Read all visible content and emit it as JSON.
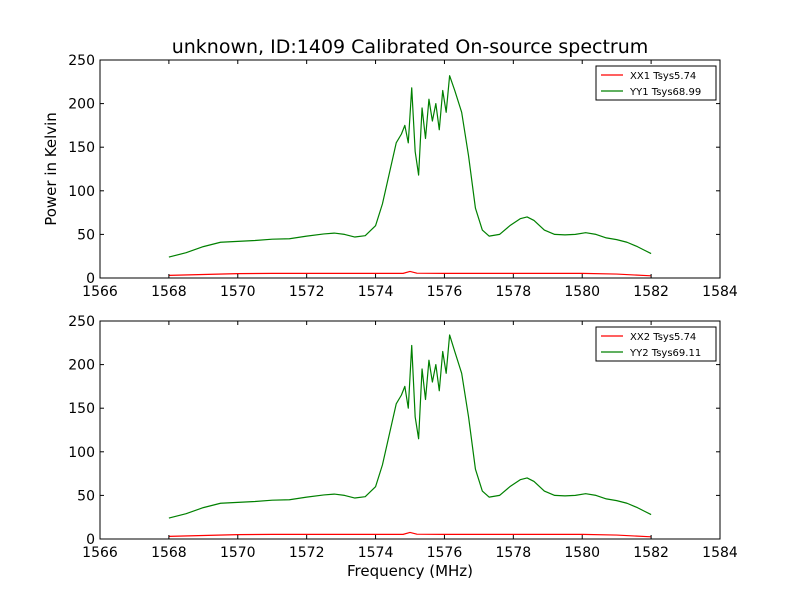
{
  "figure": {
    "title": "unknown, ID:1409 Calibrated On-source spectrum"
  },
  "chart_data": [
    {
      "type": "line",
      "title": "unknown, ID:1409 Calibrated On-source spectrum",
      "xlabel": "",
      "ylabel": "Power in Kelvin",
      "xlim": [
        1566,
        1584
      ],
      "ylim": [
        0,
        250
      ],
      "xticks": [
        1566,
        1568,
        1570,
        1572,
        1574,
        1576,
        1578,
        1580,
        1582,
        1584
      ],
      "yticks": [
        0,
        50,
        100,
        150,
        200,
        250
      ],
      "xtick_labels": [
        "1566",
        "1568",
        "1570",
        "1572",
        "1574",
        "1576",
        "1578",
        "1580",
        "1582",
        "1584"
      ],
      "ytick_labels": [
        "0",
        "50",
        "100",
        "150",
        "200",
        "250"
      ],
      "grid": false,
      "legend_position": "top-right",
      "series": [
        {
          "name": "XX1 Tsys5.74",
          "color": "#ff0000",
          "x": [
            1568,
            1569,
            1570,
            1571,
            1572,
            1573,
            1574,
            1574.8,
            1575,
            1575.2,
            1576,
            1577,
            1578,
            1579,
            1580,
            1581,
            1582
          ],
          "values": [
            3,
            4,
            5,
            5.3,
            5.3,
            5.3,
            5.3,
            5.3,
            7.5,
            5.5,
            5.3,
            5.3,
            5.3,
            5.3,
            5.3,
            4.5,
            2.5
          ]
        },
        {
          "name": "YY1 Tsys68.99",
          "color": "#008000",
          "x": [
            1568,
            1568.5,
            1569,
            1569.5,
            1570,
            1570.5,
            1571,
            1571.5,
            1572,
            1572.5,
            1572.8,
            1573.1,
            1573.4,
            1573.7,
            1574,
            1574.2,
            1574.4,
            1574.6,
            1574.75,
            1574.85,
            1574.95,
            1575.05,
            1575.15,
            1575.25,
            1575.35,
            1575.45,
            1575.55,
            1575.65,
            1575.75,
            1575.85,
            1575.95,
            1576.05,
            1576.15,
            1576.3,
            1576.5,
            1576.7,
            1576.9,
            1577.1,
            1577.3,
            1577.6,
            1577.9,
            1578.2,
            1578.4,
            1578.6,
            1578.9,
            1579.2,
            1579.5,
            1579.8,
            1580.1,
            1580.4,
            1580.7,
            1581,
            1581.3,
            1581.6,
            1581.8,
            1582
          ],
          "values": [
            24,
            29,
            36,
            41,
            42,
            43,
            44.5,
            45,
            48,
            50.5,
            51.5,
            50,
            47,
            48.5,
            60,
            85,
            120,
            155,
            165,
            175,
            155,
            218,
            145,
            118,
            195,
            160,
            205,
            180,
            200,
            170,
            215,
            190,
            232,
            215,
            190,
            140,
            80,
            55,
            48,
            50,
            60,
            68,
            70,
            66,
            55,
            50,
            49.5,
            50,
            52,
            50,
            46,
            44,
            41,
            36,
            32,
            28
          ]
        }
      ]
    },
    {
      "type": "line",
      "title": "",
      "xlabel": "Frequency (MHz)",
      "ylabel": "",
      "xlim": [
        1566,
        1584
      ],
      "ylim": [
        0,
        250
      ],
      "xticks": [
        1566,
        1568,
        1570,
        1572,
        1574,
        1576,
        1578,
        1580,
        1582,
        1584
      ],
      "yticks": [
        0,
        50,
        100,
        150,
        200,
        250
      ],
      "xtick_labels": [
        "1566",
        "1568",
        "1570",
        "1572",
        "1574",
        "1576",
        "1578",
        "1580",
        "1582",
        "1584"
      ],
      "ytick_labels": [
        "0",
        "50",
        "100",
        "150",
        "200",
        "250"
      ],
      "grid": false,
      "legend_position": "top-right",
      "series": [
        {
          "name": "XX2 Tsys5.74",
          "color": "#ff0000",
          "x": [
            1568,
            1569,
            1570,
            1571,
            1572,
            1573,
            1574,
            1574.8,
            1575,
            1575.2,
            1576,
            1577,
            1578,
            1579,
            1580,
            1581,
            1582
          ],
          "values": [
            3,
            4,
            5,
            5.3,
            5.3,
            5.3,
            5.3,
            5.3,
            7.5,
            5.5,
            5.3,
            5.3,
            5.3,
            5.3,
            5.3,
            4.5,
            2.5
          ]
        },
        {
          "name": "YY2 Tsys69.11",
          "color": "#008000",
          "x": [
            1568,
            1568.5,
            1569,
            1569.5,
            1570,
            1570.5,
            1571,
            1571.5,
            1572,
            1572.5,
            1572.8,
            1573.1,
            1573.4,
            1573.7,
            1574,
            1574.2,
            1574.4,
            1574.6,
            1574.75,
            1574.85,
            1574.95,
            1575.05,
            1575.15,
            1575.25,
            1575.35,
            1575.45,
            1575.55,
            1575.65,
            1575.75,
            1575.85,
            1575.95,
            1576.05,
            1576.15,
            1576.3,
            1576.5,
            1576.7,
            1576.9,
            1577.1,
            1577.3,
            1577.6,
            1577.9,
            1578.2,
            1578.4,
            1578.6,
            1578.9,
            1579.2,
            1579.5,
            1579.8,
            1580.1,
            1580.4,
            1580.7,
            1581,
            1581.3,
            1581.6,
            1581.8,
            1582
          ],
          "values": [
            24,
            29,
            36,
            41,
            42,
            43,
            44.5,
            45,
            48,
            50.5,
            51.5,
            50,
            47,
            48.5,
            60,
            85,
            120,
            155,
            165,
            175,
            150,
            222,
            140,
            115,
            195,
            160,
            205,
            180,
            200,
            170,
            215,
            190,
            234,
            215,
            190,
            140,
            80,
            55,
            48,
            50,
            60,
            68,
            70,
            66,
            55,
            50,
            49.5,
            50,
            52,
            50,
            46,
            44,
            41,
            36,
            32,
            28
          ]
        }
      ]
    }
  ]
}
